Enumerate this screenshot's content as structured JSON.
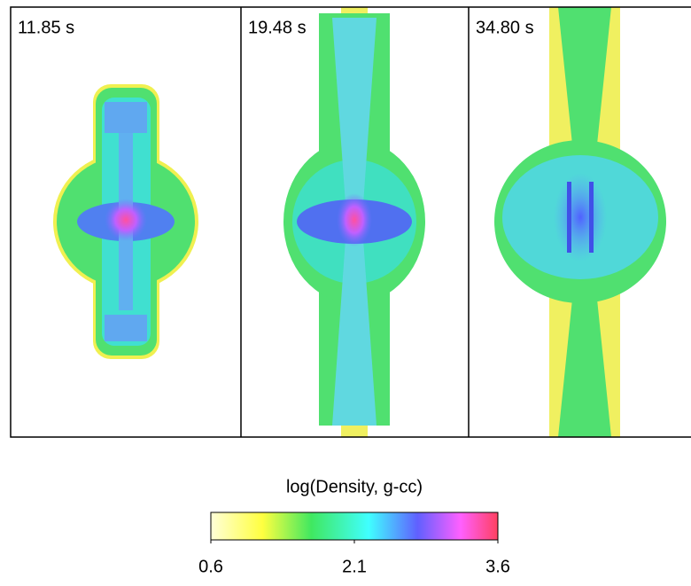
{
  "panels": [
    {
      "label": "11.85 s"
    },
    {
      "label": "19.48 s"
    },
    {
      "label": "34.80 s"
    }
  ],
  "colorbar": {
    "title": "log(Density, g-cc)",
    "lim": [
      0.6,
      3.6
    ],
    "ticks": [
      0.6,
      2.1,
      3.6
    ]
  }
}
